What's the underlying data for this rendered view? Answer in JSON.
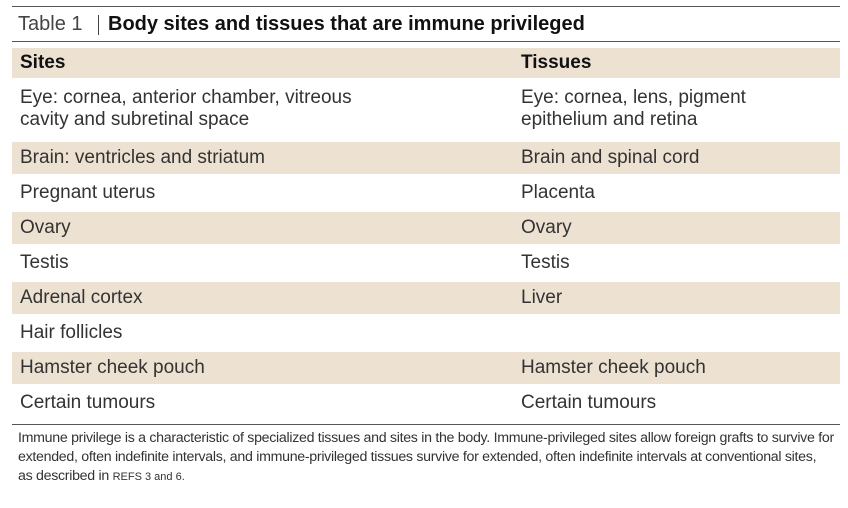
{
  "title": {
    "label": "Table 1",
    "text": "Body sites and tissues that are immune privileged"
  },
  "table": {
    "header": [
      "Sites",
      "Tissues"
    ],
    "rows": [
      [
        "Eye: cornea, anterior chamber, vitreous cavity and subretinal space",
        "Eye: cornea, lens, pigment epithelium and retina"
      ],
      [
        "Brain: ventricles and striatum",
        "Brain and spinal cord"
      ],
      [
        "Pregnant uterus",
        "Placenta"
      ],
      [
        "Ovary",
        "Ovary"
      ],
      [
        "Testis",
        "Testis"
      ],
      [
        "Adrenal cortex",
        "Liver"
      ],
      [
        "Hair follicles",
        null
      ],
      [
        "Hamster cheek pouch",
        "Hamster cheek pouch"
      ],
      [
        "Certain tumours",
        "Certain tumours"
      ]
    ]
  },
  "note": {
    "text": "Immune privilege is a characteristic of specialized tissues and sites in the body. Immune-privileged sites allow foreign grafts to survive for extended, often indefinite intervals, and immune-privileged tissues survive for extended, often indefinite intervals at conventional sites, as described in",
    "refs": "REFS 3 and 6."
  }
}
